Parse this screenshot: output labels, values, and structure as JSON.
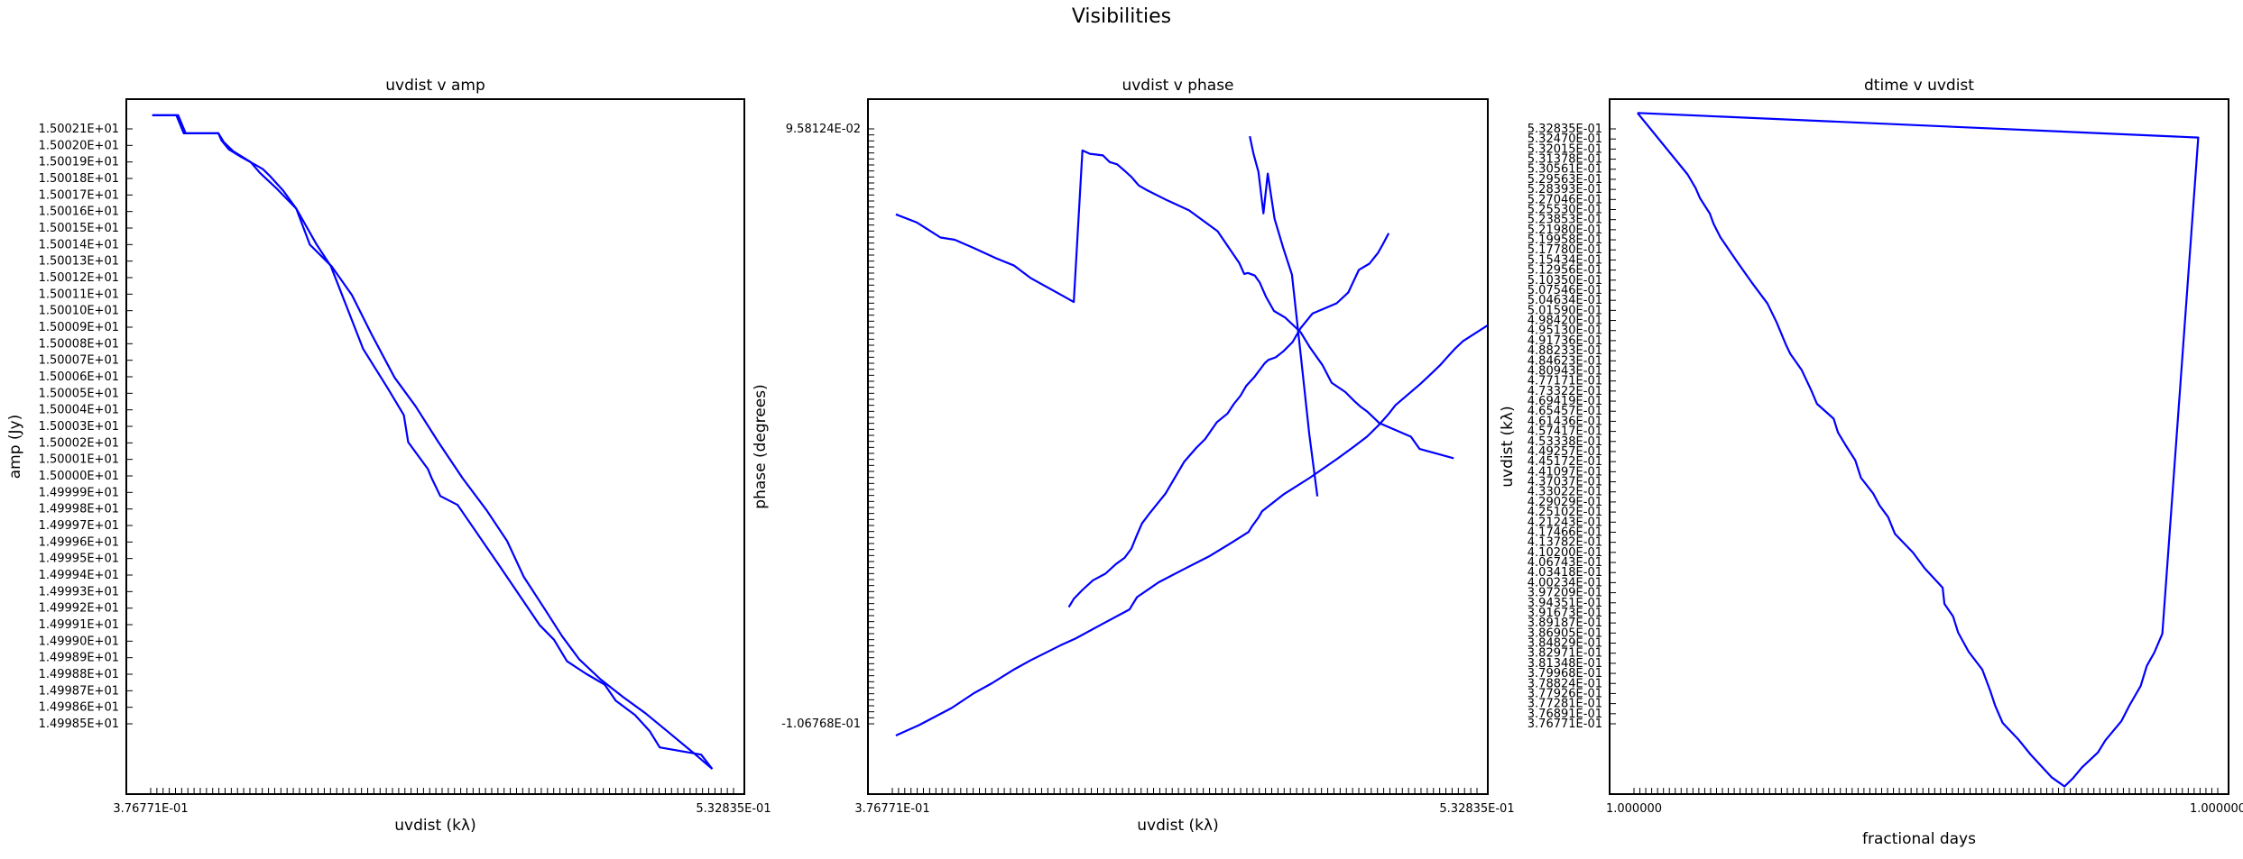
{
  "figure": {
    "title": "Visibilities",
    "line_color": "#0000ff"
  },
  "chart_data": [
    {
      "type": "line",
      "title": "uvdist v amp",
      "xlabel": "uvdist (kλ)",
      "ylabel": "amp (Jy)",
      "xlim": [
        0,
        100
      ],
      "ylim": [
        1.499834,
        1.500221
      ],
      "x_ticks": {
        "count": 95,
        "first_label": "3.76771E-01",
        "last_label": "5.32835E-01"
      },
      "y_ticks": [
        "1.50021E+01",
        "1.50020E+01",
        "1.50019E+01",
        "1.50018E+01",
        "1.50017E+01",
        "1.50016E+01",
        "1.50015E+01",
        "1.50014E+01",
        "1.50013E+01",
        "1.50012E+01",
        "1.50011E+01",
        "1.50010E+01",
        "1.50009E+01",
        "1.50008E+01",
        "1.50007E+01",
        "1.50006E+01",
        "1.50005E+01",
        "1.50004E+01",
        "1.50003E+01",
        "1.50002E+01",
        "1.50001E+01",
        "1.50000E+01",
        "1.49999E+01",
        "1.49998E+01",
        "1.49997E+01",
        "1.49996E+01",
        "1.49995E+01",
        "1.49994E+01",
        "1.49993E+01",
        "1.49992E+01",
        "1.49991E+01",
        "1.49990E+01",
        "1.49989E+01",
        "1.49988E+01",
        "1.49987E+01",
        "1.49986E+01",
        "1.49985E+01"
      ],
      "series": [
        {
          "x": [
            4.2,
            8.4,
            9.6,
            14.9,
            15.4,
            16.6,
            18.5,
            21.1,
            22.1,
            23.3,
            25.4,
            27.5,
            30.8,
            33.1,
            37.4,
            38.3,
            42.3,
            44.9,
            45.6,
            48.8,
            49.4,
            50.8,
            53.6,
            60.2,
            66.9,
            69.2,
            71.3,
            74.4,
            77.4,
            79.2,
            82.3,
            84.7,
            86.3,
            93.0,
            94.8
          ],
          "y": [
            1.500212,
            1.500212,
            1.500202,
            1.500202,
            1.500198,
            1.500193,
            1.500189,
            1.500184,
            1.500182,
            1.500178,
            1.50017,
            1.50016,
            1.50014,
            1.500128,
            1.50009,
            1.500082,
            1.50006,
            1.500045,
            1.50003,
            1.500015,
            1.50001,
            1.5,
            1.499995,
            1.499962,
            1.499928,
            1.49992,
            1.499908,
            1.499901,
            1.499895,
            1.499886,
            1.499878,
            1.499869,
            1.49986,
            1.499856,
            1.499848
          ]
        },
        {
          "x": [
            4.2,
            8.1,
            9.3,
            14.9,
            15.8,
            17.3,
            20.1,
            21.6,
            24.4,
            27.5,
            29.7,
            33.2,
            36.5,
            39.7,
            43.4,
            46.8,
            50.5,
            54.4,
            58.3,
            61.6,
            64.3,
            67.9,
            70.5,
            73.3,
            76.7,
            80.4,
            84.0,
            87.9,
            92.1,
            94.8
          ],
          "y": [
            1.500212,
            1.500212,
            1.500202,
            1.500202,
            1.500197,
            1.500192,
            1.500186,
            1.50018,
            1.500171,
            1.50016,
            1.50014,
            1.500128,
            1.500112,
            1.50009,
            1.500066,
            1.50005,
            1.50003,
            1.50001,
            1.499992,
            1.499975,
            1.499955,
            1.499936,
            1.499922,
            1.499909,
            1.499898,
            1.499888,
            1.499879,
            1.499868,
            1.499856,
            1.499848
          ]
        }
      ]
    },
    {
      "type": "line",
      "title": "uvdist v phase",
      "xlabel": "uvdist (kλ)",
      "ylabel": "phase (degrees)",
      "xlim": [
        0,
        100
      ],
      "ylim": [
        -110,
        100
      ],
      "x_ticks": {
        "count": 95,
        "first_label": "3.76771E-01",
        "last_label": "5.32835E-01"
      },
      "y_ticks": {
        "count": 100,
        "first_label": "9.58124E-02",
        "last_label": "-1.06768E-01"
      },
      "series": [
        {
          "x": [
            4.5,
            8.2,
            13.5,
            17.1,
            20.0,
            23.6,
            26.2,
            31.1,
            33.5,
            37.7,
            42.2,
            43.4,
            46.9,
            51.0,
            55.0,
            58.6,
            61.4,
            62.0,
            63.0,
            63.6,
            67.0,
            71.3,
            75.6,
            78.4,
            80.5,
            82.4,
            84.0,
            85.1,
            89.2,
            91.3,
            92.4,
            93.2,
            94.6,
            96.0,
            100.0
          ],
          "y": [
            -92.3,
            -89.2,
            -84.0,
            -79.5,
            -76.5,
            -72.3,
            -69.6,
            -65.0,
            -63.0,
            -58.7,
            -54.2,
            -50.5,
            -46.0,
            -42.0,
            -38.2,
            -34.1,
            -30.8,
            -29.0,
            -26.4,
            -24.5,
            -19.5,
            -14.4,
            -8.8,
            -5.0,
            -2.0,
            1.5,
            4.9,
            7.5,
            14.1,
            17.8,
            19.8,
            21.5,
            24.4,
            26.9,
            31.7
          ]
        },
        {
          "x": [
            4.5,
            7.9,
            11.7,
            14.0,
            17.1,
            20.7,
            23.6,
            26.2,
            31.4,
            33.2,
            34.6,
            35.8,
            37.9,
            39.0,
            40.2,
            41.5,
            42.5,
            43.1,
            43.7,
            44.9,
            48.3,
            51.8,
            56.4,
            59.9,
            60.7,
            61.3,
            62.4,
            63.2,
            64.2,
            65.5,
            67.3,
            69.8,
            71.3,
            73.3,
            74.8,
            77.0,
            78.5,
            79.5,
            80.6,
            82.5,
            87.6,
            89.0,
            94.5
          ],
          "y": [
            65.2,
            62.7,
            58.2,
            57.5,
            55.0,
            51.9,
            49.7,
            46.0,
            40.6,
            38.7,
            84.5,
            83.5,
            83.0,
            81.0,
            80.3,
            78.2,
            76.5,
            75.2,
            73.9,
            72.6,
            69.4,
            66.4,
            60.1,
            50.5,
            47.2,
            47.5,
            46.7,
            44.6,
            40.3,
            36.0,
            34.0,
            29.6,
            25.0,
            19.7,
            14.3,
            11.5,
            8.7,
            7.0,
            5.5,
            2.1,
            -2.0,
            -5.7,
            -8.5
          ]
        },
        {
          "x": [
            32.4,
            33.2,
            34.6,
            36.3,
            38.3,
            40.0,
            41.4,
            42.5,
            43.3,
            44.2,
            45.5,
            48.0,
            51.0,
            53.0,
            54.4,
            56.3,
            58.0,
            59.0,
            60.1,
            61.0,
            62.4,
            64.0,
            64.6,
            65.8,
            67.0,
            68.5,
            69.8,
            71.7,
            75.6,
            77.5,
            79.2,
            80.9,
            82.3,
            83.2,
            84.0
          ],
          "y": [
            -53.5,
            -51.0,
            -48.3,
            -45.4,
            -43.4,
            -40.5,
            -38.6,
            -35.8,
            -32.1,
            -28.2,
            -25.0,
            -19.2,
            -9.6,
            -5.3,
            -2.7,
            2.4,
            5.0,
            7.8,
            10.4,
            13.3,
            16.2,
            20.2,
            21.2,
            22.0,
            23.8,
            26.6,
            30.8,
            35.2,
            38.3,
            41.6,
            48.4,
            50.3,
            53.6,
            56.6,
            59.5
          ]
        },
        {
          "x": [
            61.6,
            62.2,
            63.0,
            63.8,
            64.5,
            65.6,
            67.0,
            68.4,
            69.9,
            71.2,
            72.5
          ],
          "y": [
            88.8,
            83.5,
            78.0,
            65.5,
            77.5,
            63.8,
            55.0,
            47.0,
            21.3,
            -1.2,
            -20.0
          ]
        }
      ]
    },
    {
      "type": "line",
      "title": "dtime v uvdist",
      "xlabel": "fractional days",
      "ylabel": "uvdist (kλ)",
      "xlim": [
        0,
        100
      ],
      "ylim": [
        0.375,
        0.536
      ],
      "x_ticks": {
        "count": 100,
        "first_label": "1.000000",
        "last_label": "1.000000"
      },
      "y_ticks": [
        "5.32835E-01",
        "5.32470E-01",
        "5.32015E-01",
        "5.31378E-01",
        "5.30561E-01",
        "5.29563E-01",
        "5.28393E-01",
        "5.27046E-01",
        "5.25530E-01",
        "5.23853E-01",
        "5.21980E-01",
        "5.19958E-01",
        "5.17780E-01",
        "5.15434E-01",
        "5.12956E-01",
        "5.10350E-01",
        "5.07546E-01",
        "5.04634E-01",
        "5.01590E-01",
        "4.98420E-01",
        "4.95130E-01",
        "4.91736E-01",
        "4.88233E-01",
        "4.84623E-01",
        "4.80943E-01",
        "4.77171E-01",
        "4.73322E-01",
        "4.69419E-01",
        "4.65457E-01",
        "4.61436E-01",
        "4.57417E-01",
        "4.53338E-01",
        "4.49257E-01",
        "4.45172E-01",
        "4.41097E-01",
        "4.37037E-01",
        "4.33022E-01",
        "4.29029E-01",
        "4.25102E-01",
        "4.21243E-01",
        "4.17466E-01",
        "4.13782E-01",
        "4.10200E-01",
        "4.06743E-01",
        "4.03418E-01",
        "4.00234E-01",
        "3.97209E-01",
        "3.94351E-01",
        "3.91673E-01",
        "3.89187E-01",
        "3.86905E-01",
        "3.84829E-01",
        "3.82971E-01",
        "3.81348E-01",
        "3.79968E-01",
        "3.78824E-01",
        "3.77926E-01",
        "3.77281E-01",
        "3.76891E-01",
        "3.76771E-01"
      ],
      "series": [
        {
          "x": [
            4.5,
            12.6,
            13.9,
            14.6,
            16.2,
            16.8,
            17.9,
            20.7,
            22.9,
            25.5,
            27.0,
            28.5,
            29.2,
            31.0,
            32.6,
            33.5,
            36.2,
            36.9,
            38.1,
            39.7,
            40.6,
            42.6,
            43.6,
            45.0,
            46.1,
            49.0,
            50.9,
            53.8,
            54.1,
            55.5,
            56.3,
            58.0,
            60.2,
            61.5,
            62.3,
            63.5,
            66.1,
            68.0,
            71.4,
            73.5,
            74.9,
            76.3,
            78.9,
            80.1,
            82.7,
            84.0,
            85.8,
            86.8,
            88.0,
            89.3,
            95.1,
            4.5
          ],
          "y": [
            0.53281,
            0.51856,
            0.51536,
            0.51306,
            0.50947,
            0.50711,
            0.50399,
            0.49811,
            0.49366,
            0.48866,
            0.48426,
            0.47908,
            0.47698,
            0.47331,
            0.46848,
            0.46542,
            0.46197,
            0.45878,
            0.45589,
            0.45232,
            0.4483,
            0.44462,
            0.4419,
            0.43916,
            0.43531,
            0.43098,
            0.4273,
            0.42281,
            0.41907,
            0.41615,
            0.41247,
            0.408,
            0.40386,
            0.39891,
            0.39544,
            0.3915,
            0.38757,
            0.38419,
            0.37891,
            0.37677,
            0.37873,
            0.38114,
            0.38466,
            0.38747,
            0.39193,
            0.39556,
            0.40006,
            0.40472,
            0.40778,
            0.41215,
            0.52711,
            0.53281
          ]
        }
      ]
    }
  ]
}
